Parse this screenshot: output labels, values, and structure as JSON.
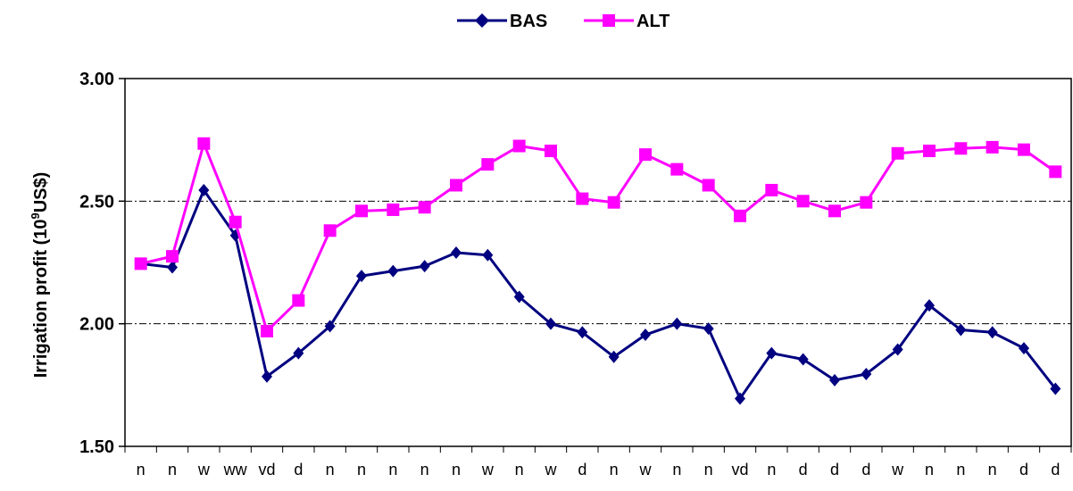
{
  "chart_data": {
    "type": "line",
    "ylabel_main": "Irrigation profit (10",
    "ylabel_sup": "9",
    "ylabel_unit": "US$)",
    "ylim": [
      1.5,
      3.0
    ],
    "yticks": [
      "1.50",
      "2.00",
      "2.50",
      "3.00"
    ],
    "ytick_values": [
      1.5,
      2.0,
      2.5,
      3.0
    ],
    "gridlines": [
      2.0,
      2.5
    ],
    "grid_style": "dash-dot",
    "legend_position": "top-center",
    "categories": [
      "n",
      "n",
      "w",
      "ww",
      "vd",
      "d",
      "n",
      "n",
      "n",
      "n",
      "n",
      "w",
      "n",
      "w",
      "d",
      "n",
      "w",
      "n",
      "n",
      "vd",
      "n",
      "d",
      "d",
      "d",
      "w",
      "n",
      "n",
      "n",
      "d",
      "d"
    ],
    "series": [
      {
        "name": "BAS",
        "color": "#000080",
        "marker": "diamond",
        "values": [
          2.245,
          2.23,
          2.545,
          2.36,
          1.785,
          1.88,
          1.99,
          2.195,
          2.215,
          2.235,
          2.29,
          2.28,
          2.11,
          2.0,
          1.965,
          1.865,
          1.955,
          2.0,
          1.98,
          1.695,
          1.88,
          1.855,
          1.77,
          1.795,
          1.895,
          2.075,
          1.975,
          1.965,
          1.9,
          1.735
        ]
      },
      {
        "name": "ALT",
        "color": "#FF00FF",
        "marker": "square",
        "values": [
          2.245,
          2.275,
          2.735,
          2.415,
          1.97,
          2.095,
          2.38,
          2.46,
          2.465,
          2.475,
          2.565,
          2.65,
          2.725,
          2.705,
          2.51,
          2.495,
          2.69,
          2.63,
          2.565,
          2.44,
          2.545,
          2.5,
          2.46,
          2.495,
          2.695,
          2.705,
          2.715,
          2.72,
          2.71,
          2.62
        ]
      }
    ]
  }
}
